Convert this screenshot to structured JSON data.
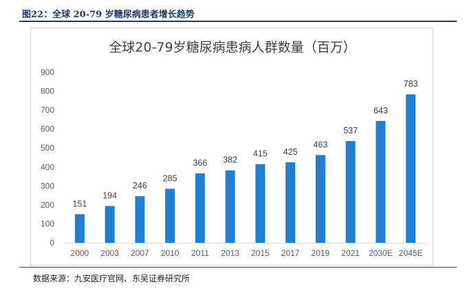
{
  "header": {
    "title": "图22：全球 20-79 岁糖尿病患者增长趋势"
  },
  "source": "数据来源：九安医疗官网、东吴证券研究所",
  "chart_data": {
    "type": "bar",
    "title": "全球20-79岁糖尿病患病人群数量（百万）",
    "categories": [
      "2000",
      "2003",
      "2007",
      "2010",
      "2011",
      "2013",
      "2015",
      "2017",
      "2019",
      "2021",
      "2030E",
      "2045E"
    ],
    "values": [
      151,
      194,
      246,
      285,
      366,
      382,
      415,
      425,
      463,
      537,
      643,
      783
    ],
    "ylim": [
      0,
      900
    ],
    "yticks": [
      0,
      100,
      200,
      300,
      400,
      500,
      600,
      700,
      800,
      900
    ],
    "grid": false,
    "legend": "none",
    "bar_color": "#1f7fd4"
  }
}
